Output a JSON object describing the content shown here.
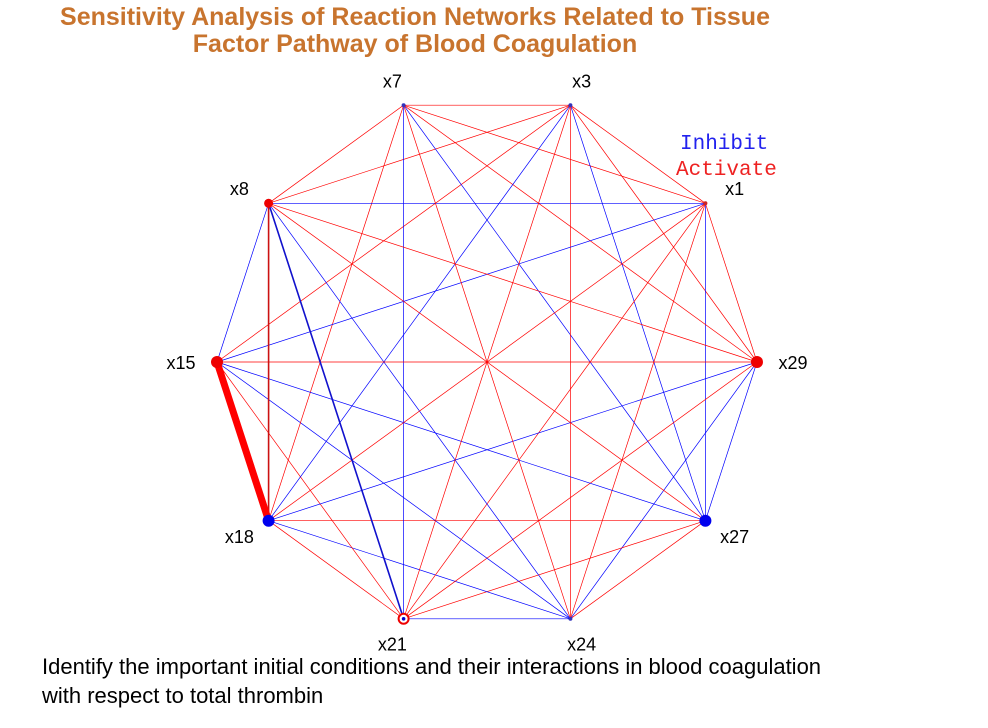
{
  "title": {
    "line1": "Sensitivity Analysis of Reaction Networks Related to Tissue",
    "line2": "Factor Pathway of Blood Coagulation"
  },
  "legend": {
    "inhibit": "Inhibit",
    "activate": "Activate"
  },
  "colors": {
    "title": "#c8742e",
    "inhibit": "#0000ff",
    "activate": "#ff0000"
  },
  "nodes": [
    {
      "id": "x7",
      "label": "x7",
      "marker": "small-blue"
    },
    {
      "id": "x3",
      "label": "x3",
      "marker": "small-blue"
    },
    {
      "id": "x1",
      "label": "x1",
      "marker": "small-red"
    },
    {
      "id": "x29",
      "label": "x29",
      "marker": "large-red"
    },
    {
      "id": "x27",
      "label": "x27",
      "marker": "large-blue"
    },
    {
      "id": "x24",
      "label": "x24",
      "marker": "small-blue"
    },
    {
      "id": "x21",
      "label": "x21",
      "marker": "ring-red"
    },
    {
      "id": "x18",
      "label": "x18",
      "marker": "large-blue"
    },
    {
      "id": "x15",
      "label": "x15",
      "marker": "large-red"
    },
    {
      "id": "x8",
      "label": "x8",
      "marker": "medium-red"
    }
  ],
  "edges": [
    {
      "from": "x15",
      "to": "x18",
      "type": "activate",
      "weight": "heavy"
    },
    {
      "from": "x8",
      "to": "x21",
      "type": "inhibit",
      "weight": "medium"
    },
    {
      "from": "x8",
      "to": "x18",
      "type": "activate",
      "weight": "medium"
    },
    {
      "from": "x7",
      "to": "x3",
      "type": "activate",
      "weight": "thin"
    },
    {
      "from": "x3",
      "to": "x1",
      "type": "activate",
      "weight": "thin"
    },
    {
      "from": "x1",
      "to": "x29",
      "type": "activate",
      "weight": "thin"
    },
    {
      "from": "x29",
      "to": "x27",
      "type": "inhibit",
      "weight": "thin"
    },
    {
      "from": "x27",
      "to": "x24",
      "type": "activate",
      "weight": "thin"
    },
    {
      "from": "x24",
      "to": "x21",
      "type": "inhibit",
      "weight": "thin"
    },
    {
      "from": "x21",
      "to": "x18",
      "type": "activate",
      "weight": "thin"
    },
    {
      "from": "x15",
      "to": "x8",
      "type": "inhibit",
      "weight": "thin"
    },
    {
      "from": "x8",
      "to": "x7",
      "type": "activate",
      "weight": "thin"
    },
    {
      "from": "x7",
      "to": "x1",
      "type": "activate",
      "weight": "thin"
    },
    {
      "from": "x3",
      "to": "x29",
      "type": "activate",
      "weight": "thin"
    },
    {
      "from": "x1",
      "to": "x27",
      "type": "inhibit",
      "weight": "thin"
    },
    {
      "from": "x29",
      "to": "x24",
      "type": "inhibit",
      "weight": "thin"
    },
    {
      "from": "x27",
      "to": "x21",
      "type": "activate",
      "weight": "thin"
    },
    {
      "from": "x24",
      "to": "x18",
      "type": "inhibit",
      "weight": "thin"
    },
    {
      "from": "x21",
      "to": "x15",
      "type": "activate",
      "weight": "thin"
    },
    {
      "from": "x8",
      "to": "x3",
      "type": "activate",
      "weight": "thin"
    },
    {
      "from": "x7",
      "to": "x29",
      "type": "activate",
      "weight": "thin"
    },
    {
      "from": "x3",
      "to": "x27",
      "type": "inhibit",
      "weight": "thin"
    },
    {
      "from": "x1",
      "to": "x24",
      "type": "activate",
      "weight": "thin"
    },
    {
      "from": "x29",
      "to": "x21",
      "type": "activate",
      "weight": "thin"
    },
    {
      "from": "x27",
      "to": "x18",
      "type": "activate",
      "weight": "thin"
    },
    {
      "from": "x24",
      "to": "x15",
      "type": "inhibit",
      "weight": "thin"
    },
    {
      "from": "x21",
      "to": "x8",
      "type": "inhibit",
      "weight": "thin"
    },
    {
      "from": "x18",
      "to": "x7",
      "type": "activate",
      "weight": "thin"
    },
    {
      "from": "x15",
      "to": "x3",
      "type": "activate",
      "weight": "thin"
    },
    {
      "from": "x8",
      "to": "x1",
      "type": "inhibit",
      "weight": "thin"
    },
    {
      "from": "x7",
      "to": "x27",
      "type": "inhibit",
      "weight": "thin"
    },
    {
      "from": "x3",
      "to": "x24",
      "type": "activate",
      "weight": "thin"
    },
    {
      "from": "x1",
      "to": "x21",
      "type": "activate",
      "weight": "thin"
    },
    {
      "from": "x29",
      "to": "x18",
      "type": "inhibit",
      "weight": "thin"
    },
    {
      "from": "x27",
      "to": "x15",
      "type": "inhibit",
      "weight": "thin"
    },
    {
      "from": "x24",
      "to": "x8",
      "type": "inhibit",
      "weight": "thin"
    },
    {
      "from": "x21",
      "to": "x7",
      "type": "inhibit",
      "weight": "thin"
    },
    {
      "from": "x18",
      "to": "x3",
      "type": "inhibit",
      "weight": "thin"
    },
    {
      "from": "x15",
      "to": "x1",
      "type": "inhibit",
      "weight": "thin"
    },
    {
      "from": "x8",
      "to": "x29",
      "type": "activate",
      "weight": "thin"
    },
    {
      "from": "x7",
      "to": "x24",
      "type": "activate",
      "weight": "thin"
    },
    {
      "from": "x3",
      "to": "x21",
      "type": "activate",
      "weight": "thin"
    },
    {
      "from": "x1",
      "to": "x18",
      "type": "activate",
      "weight": "thin"
    },
    {
      "from": "x29",
      "to": "x15",
      "type": "activate",
      "weight": "thin"
    },
    {
      "from": "x27",
      "to": "x8",
      "type": "activate",
      "weight": "thin"
    }
  ]
}
